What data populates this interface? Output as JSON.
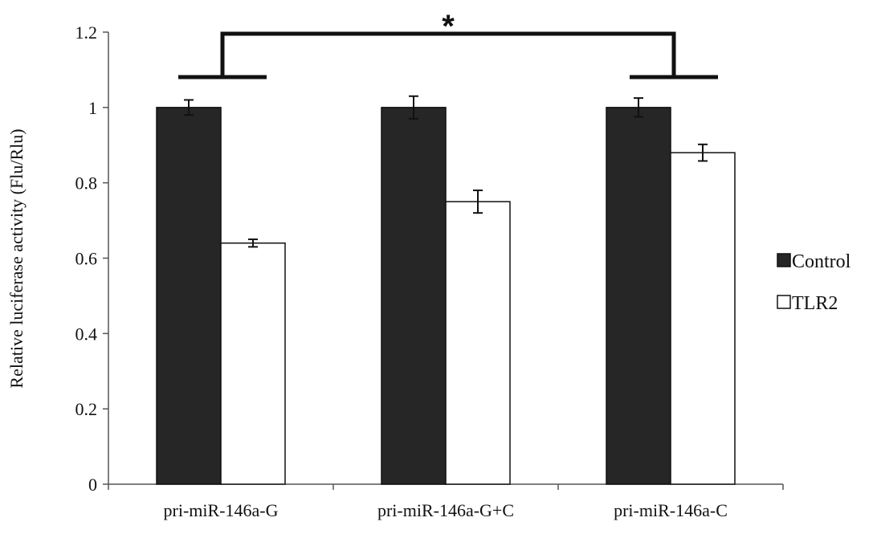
{
  "chart_data": {
    "type": "bar",
    "title": "",
    "xlabel": "",
    "ylabel": "Relative luciferase activity (Flu/Rlu)",
    "ylim": [
      0,
      1.2
    ],
    "yticks": [
      "0",
      "0.2",
      "0.4",
      "0.6",
      "0.8",
      "1",
      "1.2"
    ],
    "categories": [
      "pri-miR-146a-G",
      "pri-miR-146a-G+C",
      "pri-miR-146a-C"
    ],
    "series": [
      {
        "name": "Control",
        "values": [
          1.0,
          1.0,
          1.0
        ],
        "errors": [
          0.02,
          0.03,
          0.025
        ],
        "color": "#262626"
      },
      {
        "name": "TLR2",
        "values": [
          0.64,
          0.75,
          0.88
        ],
        "errors": [
          0.01,
          0.03,
          0.022
        ],
        "color": "#ffffff"
      }
    ],
    "grid": false,
    "legend": "right",
    "significance": {
      "label": "*",
      "between": [
        "pri-miR-146a-G",
        "pri-miR-146a-C"
      ]
    }
  }
}
